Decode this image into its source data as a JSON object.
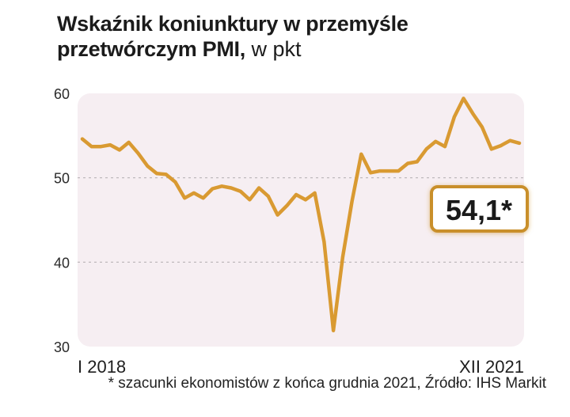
{
  "title": {
    "line1": "Wskaźnik koniunktury w przemyśle",
    "line2_bold": "przetwórczym PMI,",
    "line2_unit": " w pkt"
  },
  "chart_data": {
    "type": "line",
    "title": "Wskaźnik koniunktury w przemyśle przetwórczym PMI, w pkt",
    "ylabel": "",
    "xlabel": "",
    "ylim": [
      30,
      60
    ],
    "yticks": [
      30,
      40,
      50,
      60
    ],
    "yticks_labels": [
      "30",
      "40",
      "50",
      "60"
    ],
    "x_start_label": "I 2018",
    "x_end_label": "XII 2021",
    "grid": "horizontal dashed at 40 and 50",
    "x": [
      "2018-01",
      "2018-02",
      "2018-03",
      "2018-04",
      "2018-05",
      "2018-06",
      "2018-07",
      "2018-08",
      "2018-09",
      "2018-10",
      "2018-11",
      "2018-12",
      "2019-01",
      "2019-02",
      "2019-03",
      "2019-04",
      "2019-05",
      "2019-06",
      "2019-07",
      "2019-08",
      "2019-09",
      "2019-10",
      "2019-11",
      "2019-12",
      "2020-01",
      "2020-02",
      "2020-03",
      "2020-04",
      "2020-05",
      "2020-06",
      "2020-07",
      "2020-08",
      "2020-09",
      "2020-10",
      "2020-11",
      "2020-12",
      "2021-01",
      "2021-02",
      "2021-03",
      "2021-04",
      "2021-05",
      "2021-06",
      "2021-07",
      "2021-08",
      "2021-09",
      "2021-10",
      "2021-11",
      "2021-12"
    ],
    "values": [
      54.6,
      53.7,
      53.7,
      53.9,
      53.3,
      54.2,
      52.9,
      51.4,
      50.5,
      50.4,
      49.5,
      47.6,
      48.2,
      47.6,
      48.7,
      49.0,
      48.8,
      48.4,
      47.4,
      48.8,
      47.8,
      45.6,
      46.7,
      48.0,
      47.4,
      48.2,
      42.4,
      31.9,
      40.6,
      47.2,
      52.8,
      50.6,
      50.8,
      50.8,
      50.8,
      51.7,
      51.9,
      53.4,
      54.3,
      53.7,
      57.2,
      59.4,
      57.6,
      56.0,
      53.4,
      53.8,
      54.4,
      54.1
    ],
    "series": [
      {
        "name": "",
        "color": "#d99a32"
      }
    ],
    "annotation": {
      "text": "54,1*",
      "position": "right",
      "border_color": "#c98f2c"
    },
    "plot_background": "#f6eef2"
  },
  "footnote": "* szacunki ekonomistów z końca grudnia 2021, Źródło: IHS Markit"
}
